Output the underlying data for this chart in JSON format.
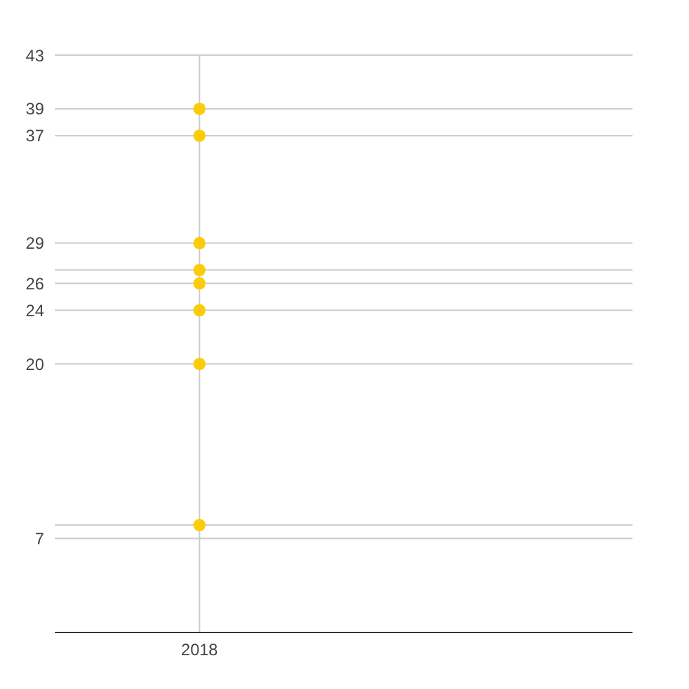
{
  "chart_data": {
    "type": "scatter",
    "categories": [
      "2018"
    ],
    "series": [
      {
        "color": "#fccc0a",
        "values": [
          39
        ]
      },
      {
        "color": "#fccc0a",
        "values": [
          37
        ]
      },
      {
        "color": "#fccc0a",
        "values": [
          29
        ]
      },
      {
        "color": "#fccc0a",
        "values": [
          27
        ]
      },
      {
        "color": "#fccc0a",
        "values": [
          26
        ]
      },
      {
        "color": "#fccc0a",
        "values": [
          24
        ]
      },
      {
        "color": "#fccc0a",
        "values": [
          20
        ]
      },
      {
        "color": "#fccc0a",
        "values": [
          8
        ]
      }
    ],
    "ylim": [
      0,
      43
    ],
    "yticks": [
      7,
      {
        "value": 8,
        "label": null
      },
      20,
      24,
      26,
      {
        "value": 27,
        "label": null
      },
      29,
      37,
      39,
      43
    ],
    "grid": true,
    "marker": "circle",
    "legend": false
  }
}
